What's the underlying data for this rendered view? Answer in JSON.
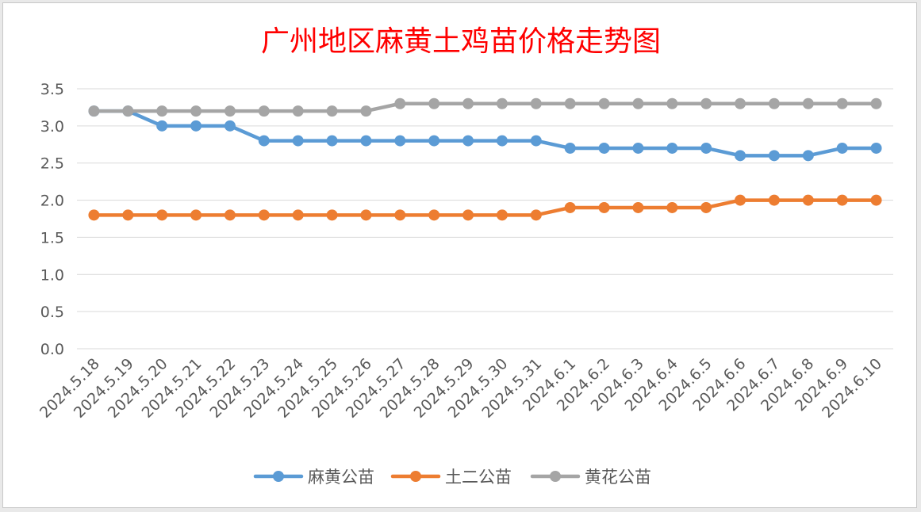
{
  "chart_data": {
    "type": "line",
    "title": "广州地区麻黄土鸡苗价格走势图",
    "xlabel": "",
    "ylabel": "",
    "ylim": [
      0,
      3.5
    ],
    "ytick_labels": [
      "0.0",
      "0.5",
      "1.0",
      "1.5",
      "2.0",
      "2.5",
      "3.0",
      "3.5"
    ],
    "grid": true,
    "legend_position": "bottom",
    "categories": [
      "2024.5.18",
      "2024.5.19",
      "2024.5.20",
      "2024.5.21",
      "2024.5.22",
      "2024.5.23",
      "2024.5.24",
      "2024.5.25",
      "2024.5.26",
      "2024.5.27",
      "2024.5.28",
      "2024.5.29",
      "2024.5.30",
      "2024.5.31",
      "2024.6.1",
      "2024.6.2",
      "2024.6.3",
      "2024.6.4",
      "2024.6.5",
      "2024.6.6",
      "2024.6.7",
      "2024.6.8",
      "2024.6.9",
      "2024.6.10"
    ],
    "series": [
      {
        "name": "麻黄公苗",
        "color": "#5b9bd5",
        "values": [
          3.2,
          3.2,
          3.0,
          3.0,
          3.0,
          2.8,
          2.8,
          2.8,
          2.8,
          2.8,
          2.8,
          2.8,
          2.8,
          2.8,
          2.7,
          2.7,
          2.7,
          2.7,
          2.7,
          2.6,
          2.6,
          2.6,
          2.7,
          2.7
        ]
      },
      {
        "name": "土二公苗",
        "color": "#ed7d31",
        "values": [
          1.8,
          1.8,
          1.8,
          1.8,
          1.8,
          1.8,
          1.8,
          1.8,
          1.8,
          1.8,
          1.8,
          1.8,
          1.8,
          1.8,
          1.9,
          1.9,
          1.9,
          1.9,
          1.9,
          2.0,
          2.0,
          2.0,
          2.0,
          2.0
        ]
      },
      {
        "name": "黄花公苗",
        "color": "#a5a5a5",
        "values": [
          3.2,
          3.2,
          3.2,
          3.2,
          3.2,
          3.2,
          3.2,
          3.2,
          3.2,
          3.3,
          3.3,
          3.3,
          3.3,
          3.3,
          3.3,
          3.3,
          3.3,
          3.3,
          3.3,
          3.3,
          3.3,
          3.3,
          3.3,
          3.3
        ]
      }
    ]
  }
}
